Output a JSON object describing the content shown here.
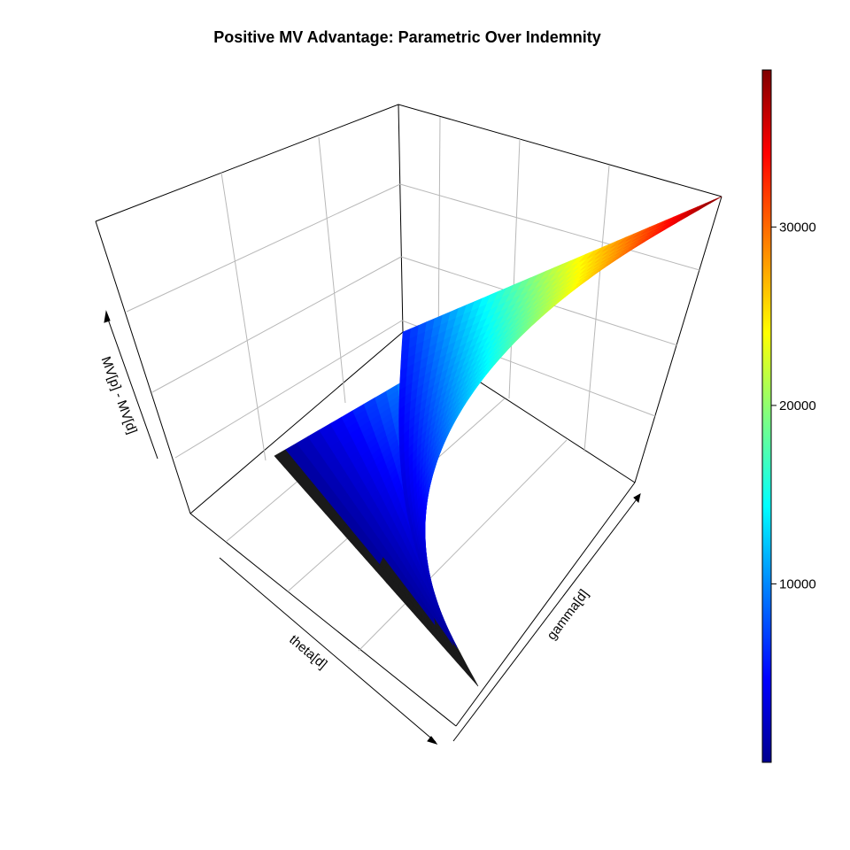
{
  "chart_data": {
    "type": "surface3d",
    "title": "Positive MV Advantage: Parametric Over Indemnity",
    "xlabel": "theta[d]",
    "ylabel": "gamma[d]",
    "zlabel": "MV[p] - MV[d]",
    "colorbar": {
      "palette": "jet",
      "colors": [
        "#00008F",
        "#0000FF",
        "#0080FF",
        "#00FFFF",
        "#80FF80",
        "#FFFF00",
        "#FF8000",
        "#FF0000",
        "#800000"
      ],
      "range": [
        0,
        38800
      ],
      "ticks": [
        10000,
        20000,
        30000
      ],
      "tick_labels": [
        "10000",
        "20000",
        "30000"
      ]
    },
    "surface": {
      "z_range": [
        0,
        38800
      ],
      "non_positive_color": "#1a1a1a",
      "corner_values": {
        "theta_low_gamma_low": 0,
        "theta_high_gamma_low": 0,
        "theta_low_gamma_high": 6000,
        "theta_high_gamma_high": 38800
      }
    },
    "grid": true
  }
}
